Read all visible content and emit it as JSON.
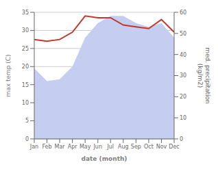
{
  "chart_data": {
    "type": "line",
    "categories": [
      "Jan",
      "Feb",
      "Mar",
      "Apr",
      "May",
      "Jun",
      "Jul",
      "Aug",
      "Sep",
      "Oct",
      "Nov",
      "Dec"
    ],
    "series": [
      {
        "type": "area",
        "color": "#c5cdf0",
        "values": [
          19.5,
          16.0,
          16.5,
          20.0,
          28.0,
          32.0,
          34.0,
          34.0,
          32.0,
          31.0,
          32.0,
          28.0
        ]
      },
      {
        "type": "line",
        "color": "#c0392b",
        "values": [
          27.5,
          27.0,
          27.5,
          29.5,
          34.0,
          33.5,
          33.5,
          31.5,
          31.0,
          30.5,
          33.0,
          29.5
        ]
      }
    ],
    "ylim": [
      0,
      35
    ],
    "yticks": [
      0,
      5,
      10,
      15,
      20,
      25,
      30,
      35
    ],
    "y2lim": [
      0,
      60
    ],
    "y2ticks": [
      0,
      10,
      20,
      30,
      40,
      50,
      60
    ],
    "x_label": "date (month)",
    "y_label": "max temp (C)",
    "y2_label": "med. precipitation\n(kg/m2)",
    "grid": true
  }
}
